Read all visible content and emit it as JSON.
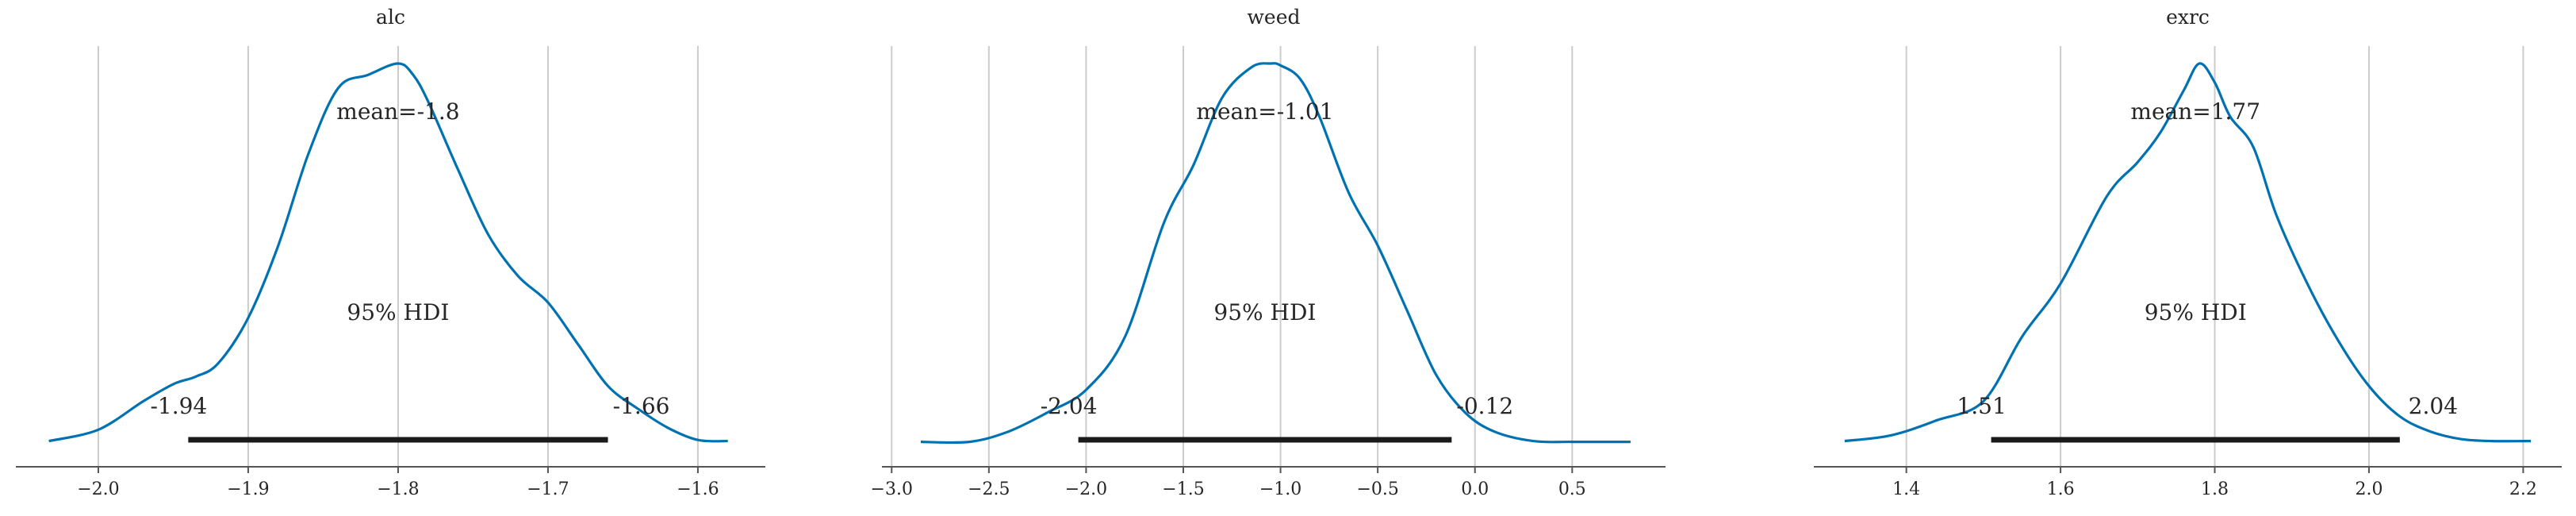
{
  "chart_data": [
    {
      "type": "area",
      "title": "alc",
      "mean_label": "mean=-1.8",
      "hdi_label": "95% HDI",
      "hdi": [
        -1.94,
        -1.66
      ],
      "hdi_low_label": "-1.94",
      "hdi_high_label": "-1.66",
      "xlim": [
        -2.055,
        -1.555
      ],
      "xticks": [
        -2.0,
        -1.9,
        -1.8,
        -1.7,
        -1.6
      ],
      "xtick_labels": [
        "−2.0",
        "−1.9",
        "−1.8",
        "−1.7",
        "−1.6"
      ],
      "density": {
        "x": [
          -2.033,
          -2.0,
          -1.97,
          -1.95,
          -1.935,
          -1.92,
          -1.9,
          -1.88,
          -1.86,
          -1.84,
          -1.82,
          -1.8,
          -1.79,
          -1.78,
          -1.76,
          -1.74,
          -1.72,
          -1.7,
          -1.68,
          -1.66,
          -1.64,
          -1.62,
          -1.6,
          -1.58
        ],
        "y": [
          0.005,
          0.035,
          0.11,
          0.155,
          0.175,
          0.21,
          0.33,
          0.52,
          0.76,
          0.935,
          0.97,
          1.0,
          0.97,
          0.9,
          0.72,
          0.55,
          0.44,
          0.37,
          0.26,
          0.15,
          0.09,
          0.04,
          0.008,
          0.005
        ]
      }
    },
    {
      "type": "area",
      "title": "weed",
      "mean_label": "mean=-1.01",
      "hdi_label": "95% HDI",
      "hdi": [
        -2.04,
        -0.12
      ],
      "hdi_low_label": "-2.04",
      "hdi_high_label": "-0.12",
      "xlim": [
        -3.05,
        0.98
      ],
      "xticks": [
        -3.0,
        -2.5,
        -2.0,
        -1.5,
        -1.0,
        -0.5,
        0.0,
        0.5
      ],
      "xtick_labels": [
        "−3.0",
        "−2.5",
        "−2.0",
        "−1.5",
        "−1.0",
        "−0.5",
        "0.0",
        "0.5"
      ],
      "density": {
        "x": [
          -2.85,
          -2.6,
          -2.4,
          -2.2,
          -2.0,
          -1.8,
          -1.6,
          -1.45,
          -1.3,
          -1.15,
          -1.05,
          -1.0,
          -0.9,
          -0.8,
          -0.65,
          -0.5,
          -0.35,
          -0.2,
          -0.05,
          0.1,
          0.3,
          0.5,
          0.8
        ],
        "y": [
          0.003,
          0.003,
          0.03,
          0.08,
          0.14,
          0.28,
          0.58,
          0.73,
          0.91,
          0.99,
          1.0,
          0.995,
          0.96,
          0.86,
          0.66,
          0.52,
          0.35,
          0.18,
          0.08,
          0.03,
          0.005,
          0.003,
          0.003
        ]
      }
    },
    {
      "type": "area",
      "title": "exrc",
      "mean_label": "mean=1.77",
      "hdi_label": "95% HDI",
      "hdi": [
        1.51,
        2.04
      ],
      "hdi_low_label": "1.51",
      "hdi_high_label": "2.04",
      "xlim": [
        1.28,
        2.25
      ],
      "xticks": [
        1.4,
        1.6,
        1.8,
        2.0,
        2.2
      ],
      "xtick_labels": [
        "1.4",
        "1.6",
        "1.8",
        "2.0",
        "2.2"
      ],
      "density": {
        "x": [
          1.32,
          1.38,
          1.44,
          1.5,
          1.55,
          1.6,
          1.66,
          1.7,
          1.73,
          1.76,
          1.78,
          1.8,
          1.82,
          1.85,
          1.88,
          1.92,
          1.96,
          2.0,
          2.04,
          2.08,
          2.12,
          2.16,
          2.21
        ],
        "y": [
          0.005,
          0.02,
          0.06,
          0.11,
          0.28,
          0.42,
          0.65,
          0.74,
          0.82,
          0.93,
          1.0,
          0.95,
          0.86,
          0.78,
          0.6,
          0.42,
          0.27,
          0.15,
          0.07,
          0.03,
          0.01,
          0.005,
          0.005
        ]
      }
    }
  ]
}
